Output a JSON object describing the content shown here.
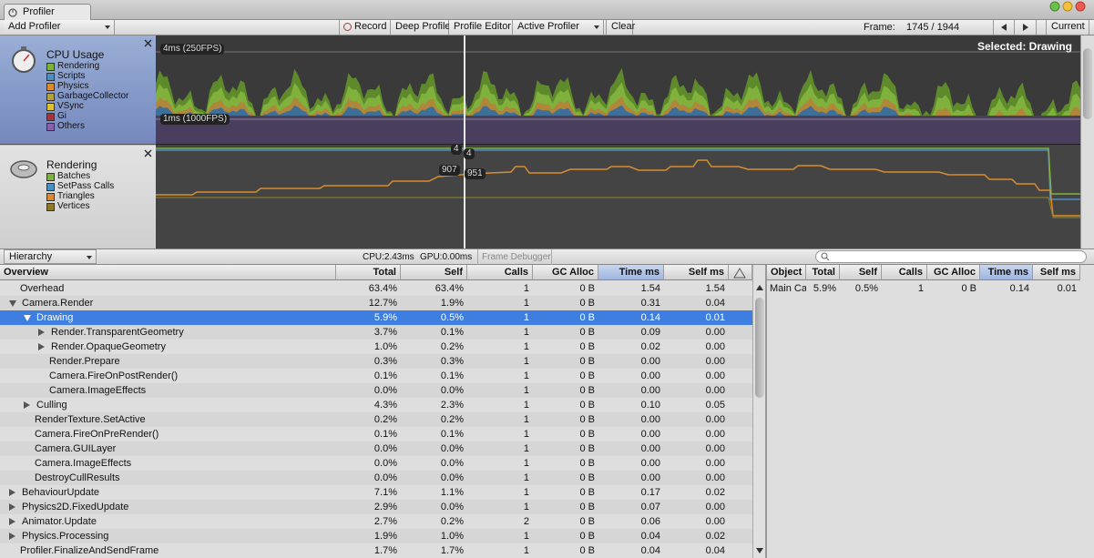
{
  "window": {
    "tab": "Profiler"
  },
  "toolbar": {
    "add_profiler": "Add Profiler",
    "buttons": [
      "Record",
      "Deep Profile",
      "Profile Editor",
      "Active Profiler",
      "Clear"
    ],
    "frame_label": "Frame:",
    "frame_value": "1745 / 1944",
    "current": "Current"
  },
  "cpu_panel": {
    "title": "CPU Usage",
    "legend": [
      {
        "name": "Rendering",
        "color": "#7fb13c"
      },
      {
        "name": "Scripts",
        "color": "#4b8fc2"
      },
      {
        "name": "Physics",
        "color": "#d98c2e"
      },
      {
        "name": "GarbageCollector",
        "color": "#b5a334"
      },
      {
        "name": "VSync",
        "color": "#e0c033"
      },
      {
        "name": "Gi",
        "color": "#a8333a"
      },
      {
        "name": "Others",
        "color": "#8a5fa8"
      }
    ]
  },
  "rendering_panel": {
    "title": "Rendering",
    "legend": [
      {
        "name": "Batches",
        "color": "#7fb13c"
      },
      {
        "name": "SetPass Calls",
        "color": "#4b8fc2"
      },
      {
        "name": "Triangles",
        "color": "#d98c2e"
      },
      {
        "name": "Vertices",
        "color": "#8b7a2a"
      }
    ]
  },
  "cpu_chart": {
    "upper_label": "4ms (250FPS)",
    "lower_label": "1ms (1000FPS)",
    "selected": "Selected: Drawing"
  },
  "rendering_chart": {
    "labels": [
      "4",
      "4",
      "907",
      "951"
    ]
  },
  "status_bar": {
    "view": "Hierarchy",
    "cpu": "CPU:2.43ms",
    "gpu": "GPU:0.00ms",
    "frame_debugger": "Frame Debugger"
  },
  "table": {
    "columns": [
      "Overview",
      "Total",
      "Self",
      "Calls",
      "GC Alloc",
      "Time ms",
      "Self ms"
    ],
    "sorted_column": "Time ms",
    "rows": [
      {
        "name": "Overhead",
        "cells": [
          "63.4%",
          "63.4%",
          "1",
          "0 B",
          "1.54",
          "1.54"
        ]
      },
      {
        "name": "Camera.Render",
        "expanded": true,
        "cells": [
          "12.7%",
          "1.9%",
          "1",
          "0 B",
          "0.31",
          "0.04"
        ],
        "children": [
          {
            "name": "Drawing",
            "expanded": true,
            "selected": true,
            "cells": [
              "5.9%",
              "0.5%",
              "1",
              "0 B",
              "0.14",
              "0.01"
            ],
            "children": [
              {
                "name": "Render.TransparentGeometry",
                "expanded": false,
                "cells": [
                  "3.7%",
                  "0.1%",
                  "1",
                  "0 B",
                  "0.09",
                  "0.00"
                ]
              },
              {
                "name": "Render.OpaqueGeometry",
                "expanded": false,
                "cells": [
                  "1.0%",
                  "0.2%",
                  "1",
                  "0 B",
                  "0.02",
                  "0.00"
                ]
              },
              {
                "name": "Render.Prepare",
                "cells": [
                  "0.3%",
                  "0.3%",
                  "1",
                  "0 B",
                  "0.00",
                  "0.00"
                ]
              },
              {
                "name": "Camera.FireOnPostRender()",
                "cells": [
                  "0.1%",
                  "0.1%",
                  "1",
                  "0 B",
                  "0.00",
                  "0.00"
                ]
              },
              {
                "name": "Camera.ImageEffects",
                "cells": [
                  "0.0%",
                  "0.0%",
                  "1",
                  "0 B",
                  "0.00",
                  "0.00"
                ]
              }
            ]
          },
          {
            "name": "Culling",
            "expanded": false,
            "cells": [
              "4.3%",
              "2.3%",
              "1",
              "0 B",
              "0.10",
              "0.05"
            ]
          },
          {
            "name": "RenderTexture.SetActive",
            "cells": [
              "0.2%",
              "0.2%",
              "1",
              "0 B",
              "0.00",
              "0.00"
            ]
          },
          {
            "name": "Camera.FireOnPreRender()",
            "cells": [
              "0.1%",
              "0.1%",
              "1",
              "0 B",
              "0.00",
              "0.00"
            ]
          },
          {
            "name": "Camera.GUILayer",
            "cells": [
              "0.0%",
              "0.0%",
              "1",
              "0 B",
              "0.00",
              "0.00"
            ]
          },
          {
            "name": "Camera.ImageEffects",
            "cells": [
              "0.0%",
              "0.0%",
              "1",
              "0 B",
              "0.00",
              "0.00"
            ]
          },
          {
            "name": "DestroyCullResults",
            "cells": [
              "0.0%",
              "0.0%",
              "1",
              "0 B",
              "0.00",
              "0.00"
            ]
          }
        ]
      },
      {
        "name": "BehaviourUpdate",
        "expanded": false,
        "cells": [
          "7.1%",
          "1.1%",
          "1",
          "0 B",
          "0.17",
          "0.02"
        ]
      },
      {
        "name": "Physics2D.FixedUpdate",
        "expanded": false,
        "cells": [
          "2.9%",
          "0.0%",
          "1",
          "0 B",
          "0.07",
          "0.00"
        ]
      },
      {
        "name": "Animator.Update",
        "expanded": false,
        "cells": [
          "2.7%",
          "0.2%",
          "2",
          "0 B",
          "0.06",
          "0.00"
        ]
      },
      {
        "name": "Physics.Processing",
        "expanded": false,
        "cells": [
          "1.9%",
          "1.0%",
          "1",
          "0 B",
          "0.04",
          "0.02"
        ]
      },
      {
        "name": "Profiler.FinalizeAndSendFrame",
        "cells": [
          "1.7%",
          "1.7%",
          "1",
          "0 B",
          "0.04",
          "0.04"
        ]
      }
    ]
  },
  "detail_table": {
    "columns": [
      "Object",
      "Total",
      "Self",
      "Calls",
      "GC Alloc",
      "Time ms",
      "Self ms"
    ],
    "sorted_column": "Time ms",
    "rows": [
      [
        "Main Ca",
        "5.9%",
        "0.5%",
        "1",
        "0 B",
        "0.14",
        "0.01"
      ]
    ]
  }
}
